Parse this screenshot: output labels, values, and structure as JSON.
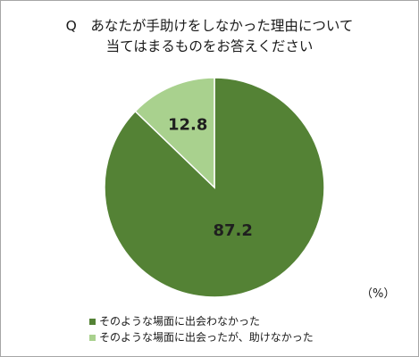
{
  "chart_data": {
    "type": "pie",
    "title_lines": [
      "Q　あなたが手助けをしなかった理由について",
      "当てはまるものをお答えください"
    ],
    "slices": [
      {
        "label": "そのような場面に出会わなかった",
        "value": 87.2,
        "value_label": "87.2",
        "color": "#548235"
      },
      {
        "label": "そのような場面に出会ったが、助けなかった",
        "value": 12.8,
        "value_label": "12.8",
        "color": "#a9d18e"
      }
    ],
    "unit_note": "（%）",
    "legend_position": "bottom-left",
    "start_angle_deg": 0,
    "direction": "clockwise"
  }
}
